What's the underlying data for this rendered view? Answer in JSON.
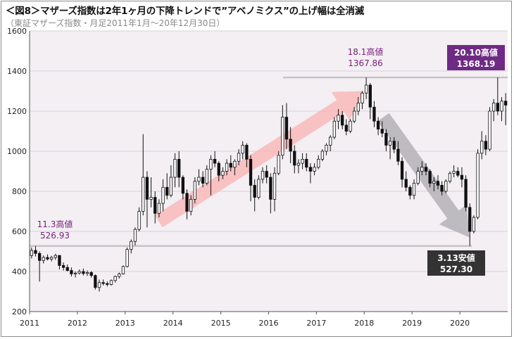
{
  "header": {
    "title": "＜図8＞マザーズ指数は2年1ヶ月の下降トレンドで”アベノミクス”の上げ幅は全消滅",
    "subtitle": "（東証マザーズ指数・月足2011年1月～20年12月30日）"
  },
  "chart_data": {
    "type": "candlestick",
    "title": "＜図8＞マザーズ指数は2年1ヶ月の下降トレンドで”アベノミクス”の上げ幅は全消滅",
    "subtitle": "（東証マザーズ指数・月足2011年1月～20年12月30日）",
    "ylim": [
      200,
      1600
    ],
    "yticks": [
      200,
      400,
      600,
      800,
      1000,
      1200,
      1400,
      1600
    ],
    "xlim": [
      2011.0,
      2021.0
    ],
    "xticks": [
      "2011",
      "2012",
      "2013",
      "2014",
      "2015",
      "2016",
      "2017",
      "2018",
      "2019",
      "2020"
    ],
    "grid": true,
    "colors": {
      "plot_bg": "#f3eff3",
      "up_candle": "#ffffff",
      "down_candle": "#111111",
      "grid": "#d7d2d7",
      "ref_line": "#c8c3c8",
      "up_arrow": "#f8b8b8",
      "down_arrow": "#b4b2b6",
      "label_purple": "#7a1f7a",
      "box_purple": "#6e2a84",
      "box_dark": "#333333"
    },
    "reference_lines": [
      {
        "value": 1368.19,
        "from": 2016.3,
        "to": 2021.0
      },
      {
        "value": 527.3,
        "from": 2011.0,
        "to": 2020.25
      }
    ],
    "trend_arrows": [
      {
        "name": "up",
        "from": [
          2013.7,
          650
        ],
        "to": [
          2018.0,
          1300
        ]
      },
      {
        "name": "down",
        "from": [
          2018.4,
          1170
        ],
        "to": [
          2020.2,
          570
        ]
      }
    ],
    "annotations": [
      {
        "id": "h1",
        "line1": "11.3高値",
        "line2": "526.93",
        "style": "text"
      },
      {
        "id": "h2",
        "line1": "18.1高値",
        "line2": "1367.86",
        "style": "text"
      },
      {
        "id": "h3",
        "line1": "20.10高値",
        "line2": "1368.19",
        "style": "box-purple"
      },
      {
        "id": "l1",
        "line1": "3.13安値",
        "line2": "527.30",
        "style": "box-dark"
      }
    ],
    "candles": [
      [
        "2011-01",
        480,
        520,
        465,
        505
      ],
      [
        "2011-02",
        505,
        526.93,
        475,
        490
      ],
      [
        "2011-03",
        490,
        500,
        350,
        455
      ],
      [
        "2011-04",
        455,
        480,
        440,
        470
      ],
      [
        "2011-05",
        470,
        485,
        455,
        462
      ],
      [
        "2011-06",
        462,
        478,
        450,
        470
      ],
      [
        "2011-07",
        470,
        488,
        458,
        480
      ],
      [
        "2011-08",
        480,
        482,
        410,
        430
      ],
      [
        "2011-09",
        430,
        445,
        405,
        420
      ],
      [
        "2011-10",
        420,
        435,
        400,
        405
      ],
      [
        "2011-11",
        405,
        420,
        375,
        388
      ],
      [
        "2011-12",
        388,
        400,
        370,
        392
      ],
      [
        "2012-01",
        392,
        410,
        385,
        400
      ],
      [
        "2012-02",
        400,
        415,
        380,
        390
      ],
      [
        "2012-03",
        390,
        405,
        378,
        395
      ],
      [
        "2012-04",
        395,
        402,
        370,
        380
      ],
      [
        "2012-05",
        380,
        385,
        310,
        320
      ],
      [
        "2012-06",
        320,
        360,
        300,
        345
      ],
      [
        "2012-07",
        345,
        360,
        330,
        340
      ],
      [
        "2012-08",
        340,
        350,
        325,
        335
      ],
      [
        "2012-09",
        335,
        360,
        330,
        355
      ],
      [
        "2012-10",
        355,
        380,
        345,
        375
      ],
      [
        "2012-11",
        375,
        395,
        365,
        388
      ],
      [
        "2012-12",
        388,
        430,
        385,
        425
      ],
      [
        "2013-01",
        425,
        520,
        420,
        510
      ],
      [
        "2013-02",
        510,
        560,
        490,
        550
      ],
      [
        "2013-03",
        550,
        620,
        530,
        610
      ],
      [
        "2013-04",
        610,
        720,
        600,
        700
      ],
      [
        "2013-05",
        700,
        1085,
        680,
        870
      ],
      [
        "2013-06",
        870,
        900,
        620,
        760
      ],
      [
        "2013-07",
        760,
        870,
        720,
        770
      ],
      [
        "2013-08",
        770,
        800,
        640,
        690
      ],
      [
        "2013-09",
        690,
        760,
        670,
        740
      ],
      [
        "2013-10",
        740,
        860,
        700,
        820
      ],
      [
        "2013-11",
        820,
        890,
        760,
        780
      ],
      [
        "2013-12",
        780,
        930,
        770,
        870
      ],
      [
        "2014-01",
        870,
        990,
        820,
        960
      ],
      [
        "2014-02",
        960,
        1000,
        820,
        870
      ],
      [
        "2014-03",
        870,
        880,
        760,
        790
      ],
      [
        "2014-04",
        790,
        810,
        660,
        700
      ],
      [
        "2014-05",
        700,
        780,
        680,
        760
      ],
      [
        "2014-06",
        760,
        870,
        740,
        850
      ],
      [
        "2014-07",
        850,
        910,
        830,
        870
      ],
      [
        "2014-08",
        870,
        900,
        820,
        840
      ],
      [
        "2014-09",
        840,
        930,
        830,
        910
      ],
      [
        "2014-10",
        910,
        980,
        780,
        960
      ],
      [
        "2014-11",
        960,
        1000,
        920,
        940
      ],
      [
        "2014-12",
        940,
        950,
        850,
        880
      ],
      [
        "2015-01",
        880,
        920,
        860,
        900
      ],
      [
        "2015-02",
        900,
        960,
        880,
        940
      ],
      [
        "2015-03",
        940,
        980,
        900,
        920
      ],
      [
        "2015-04",
        920,
        960,
        880,
        950
      ],
      [
        "2015-05",
        950,
        1010,
        930,
        990
      ],
      [
        "2015-06",
        990,
        1050,
        960,
        1030
      ],
      [
        "2015-07",
        1030,
        1040,
        920,
        960
      ],
      [
        "2015-08",
        960,
        980,
        750,
        830
      ],
      [
        "2015-09",
        830,
        860,
        700,
        770
      ],
      [
        "2015-10",
        770,
        880,
        760,
        860
      ],
      [
        "2015-11",
        860,
        920,
        840,
        900
      ],
      [
        "2015-12",
        900,
        930,
        840,
        870
      ],
      [
        "2016-01",
        870,
        890,
        690,
        760
      ],
      [
        "2016-02",
        760,
        920,
        700,
        890
      ],
      [
        "2016-03",
        890,
        1000,
        880,
        980
      ],
      [
        "2016-04",
        980,
        1230,
        960,
        1170
      ],
      [
        "2016-05",
        1170,
        1240,
        1010,
        1060
      ],
      [
        "2016-06",
        1060,
        1120,
        940,
        1000
      ],
      [
        "2016-07",
        1000,
        1030,
        890,
        930
      ],
      [
        "2016-08",
        930,
        960,
        890,
        940
      ],
      [
        "2016-09",
        940,
        990,
        910,
        960
      ],
      [
        "2016-10",
        960,
        990,
        900,
        920
      ],
      [
        "2016-11",
        920,
        940,
        840,
        900
      ],
      [
        "2016-12",
        900,
        940,
        880,
        920
      ],
      [
        "2017-01",
        920,
        980,
        910,
        960
      ],
      [
        "2017-02",
        960,
        1010,
        950,
        1000
      ],
      [
        "2017-03",
        1000,
        1040,
        980,
        1030
      ],
      [
        "2017-04",
        1030,
        1080,
        1000,
        1070
      ],
      [
        "2017-05",
        1070,
        1170,
        1060,
        1150
      ],
      [
        "2017-06",
        1150,
        1210,
        1110,
        1180
      ],
      [
        "2017-07",
        1180,
        1200,
        1110,
        1130
      ],
      [
        "2017-08",
        1130,
        1160,
        1080,
        1100
      ],
      [
        "2017-09",
        1100,
        1160,
        1090,
        1150
      ],
      [
        "2017-10",
        1150,
        1220,
        1140,
        1200
      ],
      [
        "2017-11",
        1200,
        1270,
        1180,
        1240
      ],
      [
        "2017-12",
        1240,
        1300,
        1210,
        1290
      ],
      [
        "2018-01",
        1290,
        1367.86,
        1260,
        1330
      ],
      [
        "2018-02",
        1330,
        1340,
        1160,
        1220
      ],
      [
        "2018-03",
        1220,
        1250,
        1120,
        1150
      ],
      [
        "2018-04",
        1150,
        1170,
        1080,
        1110
      ],
      [
        "2018-05",
        1110,
        1150,
        1070,
        1090
      ],
      [
        "2018-06",
        1090,
        1110,
        1000,
        1030
      ],
      [
        "2018-07",
        1030,
        1070,
        960,
        1050
      ],
      [
        "2018-08",
        1050,
        1070,
        990,
        1010
      ],
      [
        "2018-09",
        1010,
        1050,
        930,
        950
      ],
      [
        "2018-10",
        950,
        970,
        820,
        860
      ],
      [
        "2018-11",
        860,
        900,
        800,
        820
      ],
      [
        "2018-12",
        820,
        830,
        760,
        780
      ],
      [
        "2019-01",
        780,
        860,
        760,
        840
      ],
      [
        "2019-02",
        840,
        920,
        830,
        900
      ],
      [
        "2019-03",
        900,
        950,
        880,
        920
      ],
      [
        "2019-04",
        920,
        940,
        880,
        900
      ],
      [
        "2019-05",
        900,
        910,
        820,
        840
      ],
      [
        "2019-06",
        840,
        870,
        800,
        850
      ],
      [
        "2019-07",
        850,
        880,
        810,
        830
      ],
      [
        "2019-08",
        830,
        850,
        780,
        800
      ],
      [
        "2019-09",
        800,
        860,
        790,
        850
      ],
      [
        "2019-10",
        850,
        900,
        840,
        890
      ],
      [
        "2019-11",
        890,
        930,
        870,
        900
      ],
      [
        "2019-12",
        900,
        920,
        870,
        880
      ],
      [
        "2020-01",
        880,
        920,
        820,
        860
      ],
      [
        "2020-02",
        860,
        880,
        700,
        720
      ],
      [
        "2020-03",
        720,
        740,
        527.3,
        600
      ],
      [
        "2020-04",
        600,
        680,
        590,
        670
      ],
      [
        "2020-05",
        670,
        1010,
        660,
        990
      ],
      [
        "2020-06",
        990,
        1100,
        960,
        1050
      ],
      [
        "2020-07",
        1050,
        1080,
        980,
        1010
      ],
      [
        "2020-08",
        1010,
        1220,
        1000,
        1200
      ],
      [
        "2020-09",
        1200,
        1260,
        1150,
        1240
      ],
      [
        "2020-10",
        1240,
        1368.19,
        1180,
        1200
      ],
      [
        "2020-11",
        1200,
        1270,
        1150,
        1250
      ],
      [
        "2020-12",
        1250,
        1290,
        1130,
        1230
      ]
    ]
  }
}
